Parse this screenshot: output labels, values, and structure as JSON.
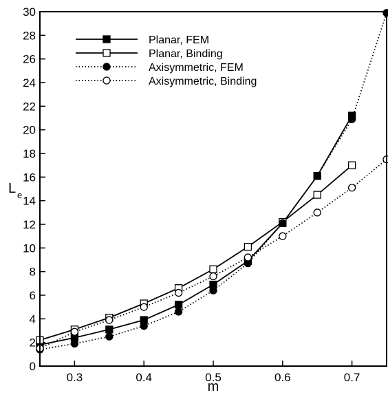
{
  "chart_data": {
    "type": "line",
    "xlabel": "m",
    "ylabel": "L",
    "ylabel_sub": "e",
    "xlim": [
      0.25,
      0.75
    ],
    "ylim": [
      0,
      30
    ],
    "xticks": [
      0.3,
      0.4,
      0.5,
      0.6,
      0.7
    ],
    "xtick_labels": [
      "0.3",
      "0.4",
      "0.5",
      "0.6",
      "0.7"
    ],
    "yticks": [
      0,
      2,
      4,
      6,
      8,
      10,
      12,
      14,
      16,
      18,
      20,
      22,
      24,
      26,
      28,
      30
    ],
    "ytick_labels": [
      "0",
      "2",
      "4",
      "6",
      "8",
      "10",
      "12",
      "14",
      "16",
      "18",
      "20",
      "22",
      "24",
      "26",
      "28",
      "30"
    ],
    "grid": false,
    "legend_position": "upper-left",
    "series": [
      {
        "name": "Planar, FEM",
        "line_style": "solid",
        "marker": "filled-square",
        "x": [
          0.25,
          0.3,
          0.35,
          0.4,
          0.45,
          0.5,
          0.55,
          0.6,
          0.65,
          0.7
        ],
        "y": [
          1.8,
          2.4,
          3.1,
          3.9,
          5.2,
          6.9,
          8.9,
          12.1,
          16.1,
          21.2
        ]
      },
      {
        "name": "Planar, Binding",
        "line_style": "solid",
        "marker": "open-square",
        "x": [
          0.25,
          0.3,
          0.35,
          0.4,
          0.45,
          0.5,
          0.55,
          0.6,
          0.65,
          0.7
        ],
        "y": [
          2.2,
          3.1,
          4.1,
          5.3,
          6.6,
          8.2,
          10.1,
          12.2,
          14.5,
          17.0
        ]
      },
      {
        "name": "Axisymmetric, FEM",
        "line_style": "dotted",
        "marker": "filled-circle",
        "x": [
          0.25,
          0.3,
          0.35,
          0.4,
          0.45,
          0.5,
          0.55,
          0.6,
          0.65,
          0.7,
          0.75
        ],
        "y": [
          1.4,
          1.9,
          2.5,
          3.4,
          4.6,
          6.4,
          8.7,
          12.1,
          16.1,
          20.9,
          29.9
        ]
      },
      {
        "name": "Axisymmetric, Binding",
        "line_style": "dotted",
        "marker": "open-circle",
        "x": [
          0.25,
          0.3,
          0.35,
          0.4,
          0.45,
          0.5,
          0.55,
          0.6,
          0.65,
          0.7,
          0.75
        ],
        "y": [
          1.5,
          2.9,
          3.9,
          5.0,
          6.2,
          7.6,
          9.2,
          11.0,
          13.0,
          15.1,
          17.5
        ]
      }
    ]
  }
}
